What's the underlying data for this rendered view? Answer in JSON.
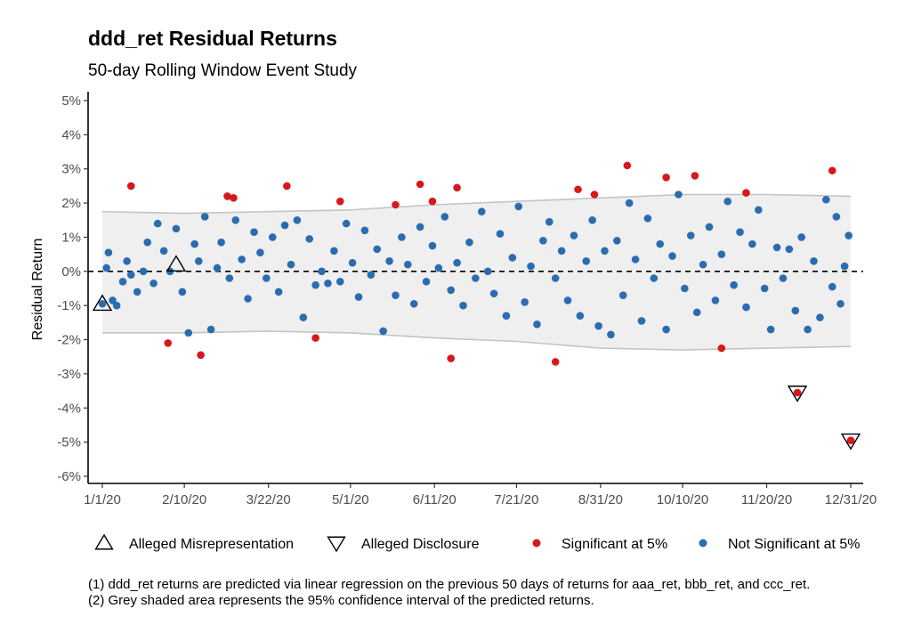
{
  "header": {
    "title": "ddd_ret Residual Returns",
    "subtitle": "50-day Rolling Window Event Study"
  },
  "legend": {
    "items": [
      {
        "label": "Alleged Misrepresentation",
        "icon": "triangle-up-icon"
      },
      {
        "label": "Alleged Disclosure",
        "icon": "triangle-down-icon"
      },
      {
        "label": "Significant at 5%",
        "icon": "red-dot-icon",
        "color": "#d7191c"
      },
      {
        "label": "Not Significant at 5%",
        "icon": "blue-dot-icon",
        "color": "#2b6cb0"
      }
    ]
  },
  "notes": [
    "(1)  ddd_ret returns are predicted via linear regression on the previous 50 days of returns for aaa_ret, bbb_ret, and ccc_ret.",
    "(2)  Grey shaded area represents the 95% confidence interval of the predicted returns."
  ],
  "colors": {
    "significant": "#d7191c",
    "not_significant": "#2b6cb0",
    "band_fill": "#efefef",
    "band_line": "#c4c4c4"
  },
  "chart_data": {
    "type": "scatter",
    "title": "ddd_ret Residual Returns",
    "subtitle": "50-day Rolling Window Event Study",
    "xlabel": "",
    "ylabel": "Residual Return",
    "x_type": "date",
    "xlim": [
      "2020-01-01",
      "2020-12-31"
    ],
    "ylim": [
      -6,
      5
    ],
    "x_ticks": [
      "1/1/20",
      "2/10/20",
      "3/22/20",
      "5/1/20",
      "6/11/20",
      "7/21/20",
      "8/31/20",
      "10/10/20",
      "11/20/20",
      "12/31/20"
    ],
    "y_ticks": [
      "5%",
      "4%",
      "3%",
      "2%",
      "1%",
      "0%",
      "-1%",
      "-2%",
      "-3%",
      "-4%",
      "-5%",
      "-6%"
    ],
    "reference_line": {
      "y": 0,
      "style": "dashed"
    },
    "confidence_band": {
      "name": "95% confidence interval",
      "x": [
        "2020-01-01",
        "2020-02-10",
        "2020-03-22",
        "2020-05-01",
        "2020-06-11",
        "2020-07-21",
        "2020-08-31",
        "2020-10-10",
        "2020-11-20",
        "2020-12-31"
      ],
      "upper": [
        1.75,
        1.7,
        1.75,
        1.8,
        1.95,
        2.05,
        2.15,
        2.25,
        2.25,
        2.2
      ],
      "lower": [
        -1.8,
        -1.8,
        -1.75,
        -1.8,
        -1.95,
        -2.05,
        -2.25,
        -2.3,
        -2.25,
        -2.2
      ]
    },
    "series": [
      {
        "name": "Significant at 5%",
        "color": "#d7191c",
        "points": [
          [
            "2020-01-15",
            2.5
          ],
          [
            "2020-02-02",
            -2.1
          ],
          [
            "2020-02-18",
            -2.45
          ],
          [
            "2020-03-02",
            2.2
          ],
          [
            "2020-03-05",
            2.15
          ],
          [
            "2020-03-31",
            2.5
          ],
          [
            "2020-04-14",
            -1.95
          ],
          [
            "2020-04-26",
            2.05
          ],
          [
            "2020-05-23",
            1.95
          ],
          [
            "2020-06-04",
            2.55
          ],
          [
            "2020-06-10",
            2.05
          ],
          [
            "2020-06-19",
            -2.55
          ],
          [
            "2020-06-22",
            2.45
          ],
          [
            "2020-08-09",
            -2.65
          ],
          [
            "2020-08-20",
            2.4
          ],
          [
            "2020-08-28",
            2.25
          ],
          [
            "2020-09-13",
            3.1
          ],
          [
            "2020-10-02",
            2.75
          ],
          [
            "2020-10-16",
            2.8
          ],
          [
            "2020-10-29",
            -2.25
          ],
          [
            "2020-11-10",
            2.3
          ],
          [
            "2020-12-05",
            -3.55
          ],
          [
            "2020-12-22",
            2.95
          ],
          [
            "2020-12-31",
            -4.95
          ]
        ]
      },
      {
        "name": "Not Significant at 5%",
        "color": "#2b6cb0",
        "points": [
          [
            "2020-01-01",
            -0.95
          ],
          [
            "2020-01-03",
            0.1
          ],
          [
            "2020-01-04",
            0.55
          ],
          [
            "2020-01-06",
            -0.85
          ],
          [
            "2020-01-08",
            -1.0
          ],
          [
            "2020-01-11",
            -0.3
          ],
          [
            "2020-01-13",
            0.3
          ],
          [
            "2020-01-15",
            -0.1
          ],
          [
            "2020-01-18",
            -0.6
          ],
          [
            "2020-01-21",
            0.0
          ],
          [
            "2020-01-23",
            0.85
          ],
          [
            "2020-01-26",
            -0.35
          ],
          [
            "2020-01-28",
            1.4
          ],
          [
            "2020-01-31",
            0.6
          ],
          [
            "2020-02-03",
            0.0
          ],
          [
            "2020-02-06",
            1.25
          ],
          [
            "2020-02-09",
            -0.6
          ],
          [
            "2020-02-12",
            -1.8
          ],
          [
            "2020-02-15",
            0.8
          ],
          [
            "2020-02-17",
            0.3
          ],
          [
            "2020-02-20",
            1.6
          ],
          [
            "2020-02-23",
            -1.7
          ],
          [
            "2020-02-26",
            0.1
          ],
          [
            "2020-02-28",
            0.85
          ],
          [
            "2020-03-03",
            -0.2
          ],
          [
            "2020-03-06",
            1.5
          ],
          [
            "2020-03-09",
            0.35
          ],
          [
            "2020-03-12",
            -0.8
          ],
          [
            "2020-03-15",
            1.15
          ],
          [
            "2020-03-18",
            0.55
          ],
          [
            "2020-03-21",
            -0.2
          ],
          [
            "2020-03-24",
            1.0
          ],
          [
            "2020-03-27",
            -0.6
          ],
          [
            "2020-03-30",
            1.35
          ],
          [
            "2020-04-02",
            0.2
          ],
          [
            "2020-04-05",
            1.5
          ],
          [
            "2020-04-08",
            -1.35
          ],
          [
            "2020-04-11",
            0.95
          ],
          [
            "2020-04-14",
            -0.4
          ],
          [
            "2020-04-17",
            0.0
          ],
          [
            "2020-04-20",
            -0.35
          ],
          [
            "2020-04-23",
            0.6
          ],
          [
            "2020-04-26",
            -0.3
          ],
          [
            "2020-04-29",
            1.4
          ],
          [
            "2020-05-02",
            0.25
          ],
          [
            "2020-05-05",
            -0.75
          ],
          [
            "2020-05-08",
            1.2
          ],
          [
            "2020-05-11",
            -0.1
          ],
          [
            "2020-05-14",
            0.65
          ],
          [
            "2020-05-17",
            -1.75
          ],
          [
            "2020-05-20",
            0.3
          ],
          [
            "2020-05-23",
            -0.7
          ],
          [
            "2020-05-26",
            1.0
          ],
          [
            "2020-05-29",
            0.2
          ],
          [
            "2020-06-01",
            -0.95
          ],
          [
            "2020-06-04",
            1.3
          ],
          [
            "2020-06-07",
            -0.3
          ],
          [
            "2020-06-10",
            0.75
          ],
          [
            "2020-06-13",
            0.1
          ],
          [
            "2020-06-16",
            1.6
          ],
          [
            "2020-06-19",
            -0.55
          ],
          [
            "2020-06-22",
            0.25
          ],
          [
            "2020-06-25",
            -1.0
          ],
          [
            "2020-06-28",
            0.85
          ],
          [
            "2020-07-01",
            -0.2
          ],
          [
            "2020-07-04",
            1.75
          ],
          [
            "2020-07-07",
            0.0
          ],
          [
            "2020-07-10",
            -0.65
          ],
          [
            "2020-07-13",
            1.1
          ],
          [
            "2020-07-16",
            -1.3
          ],
          [
            "2020-07-19",
            0.4
          ],
          [
            "2020-07-22",
            1.9
          ],
          [
            "2020-07-25",
            -0.9
          ],
          [
            "2020-07-28",
            0.15
          ],
          [
            "2020-07-31",
            -1.55
          ],
          [
            "2020-08-03",
            0.9
          ],
          [
            "2020-08-06",
            1.45
          ],
          [
            "2020-08-09",
            -0.2
          ],
          [
            "2020-08-12",
            0.6
          ],
          [
            "2020-08-15",
            -0.85
          ],
          [
            "2020-08-18",
            1.05
          ],
          [
            "2020-08-21",
            -1.3
          ],
          [
            "2020-08-24",
            0.3
          ],
          [
            "2020-08-27",
            1.5
          ],
          [
            "2020-08-30",
            -1.6
          ],
          [
            "2020-09-02",
            0.6
          ],
          [
            "2020-09-05",
            -1.85
          ],
          [
            "2020-09-08",
            0.9
          ],
          [
            "2020-09-11",
            -0.7
          ],
          [
            "2020-09-14",
            2.0
          ],
          [
            "2020-09-17",
            0.35
          ],
          [
            "2020-09-20",
            -1.45
          ],
          [
            "2020-09-23",
            1.55
          ],
          [
            "2020-09-26",
            -0.2
          ],
          [
            "2020-09-29",
            0.8
          ],
          [
            "2020-10-02",
            -1.7
          ],
          [
            "2020-10-05",
            0.45
          ],
          [
            "2020-10-08",
            2.25
          ],
          [
            "2020-10-11",
            -0.5
          ],
          [
            "2020-10-14",
            1.05
          ],
          [
            "2020-10-17",
            -1.2
          ],
          [
            "2020-10-20",
            0.2
          ],
          [
            "2020-10-23",
            1.3
          ],
          [
            "2020-10-26",
            -0.85
          ],
          [
            "2020-10-29",
            0.5
          ],
          [
            "2020-11-01",
            2.05
          ],
          [
            "2020-11-04",
            -0.4
          ],
          [
            "2020-11-07",
            1.15
          ],
          [
            "2020-11-10",
            -1.05
          ],
          [
            "2020-11-13",
            0.8
          ],
          [
            "2020-11-16",
            1.8
          ],
          [
            "2020-11-19",
            -0.5
          ],
          [
            "2020-11-22",
            -1.7
          ],
          [
            "2020-11-25",
            0.7
          ],
          [
            "2020-11-28",
            -0.2
          ],
          [
            "2020-12-01",
            0.65
          ],
          [
            "2020-12-04",
            -1.15
          ],
          [
            "2020-12-07",
            1.0
          ],
          [
            "2020-12-10",
            -1.7
          ],
          [
            "2020-12-13",
            0.3
          ],
          [
            "2020-12-16",
            -1.35
          ],
          [
            "2020-12-19",
            2.1
          ],
          [
            "2020-12-22",
            -0.45
          ],
          [
            "2020-12-24",
            1.6
          ],
          [
            "2020-12-26",
            -0.95
          ],
          [
            "2020-12-28",
            0.15
          ],
          [
            "2020-12-30",
            1.05
          ]
        ]
      }
    ],
    "markers": [
      {
        "name": "Alleged Misrepresentation",
        "shape": "triangle-up",
        "points": [
          [
            "2020-01-01",
            -0.95
          ],
          [
            "2020-02-06",
            0.2
          ]
        ]
      },
      {
        "name": "Alleged Disclosure",
        "shape": "triangle-down",
        "points": [
          [
            "2020-12-05",
            -3.55
          ],
          [
            "2020-12-31",
            -4.95
          ]
        ]
      }
    ]
  }
}
